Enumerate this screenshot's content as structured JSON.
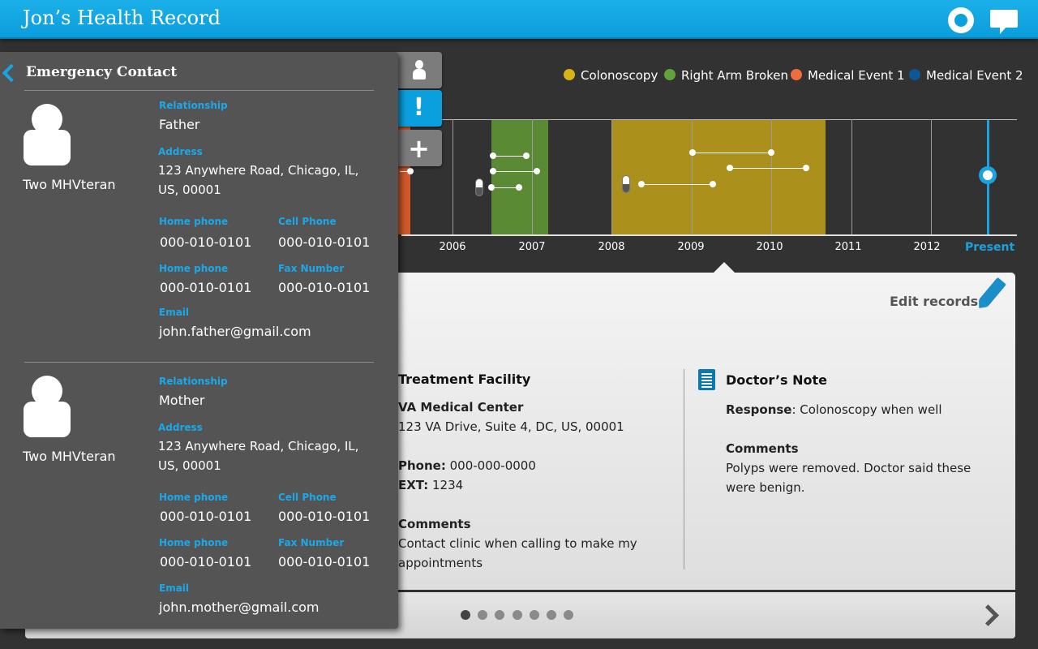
{
  "header": {
    "title": "Jon’s Health Record"
  },
  "legend": [
    {
      "label": "Colonoscopy",
      "color": "#d6b416"
    },
    {
      "label": "Right Arm Broken",
      "color": "#62a23b"
    },
    {
      "label": "Medical Event 1",
      "color": "#ef6c3c"
    },
    {
      "label": "Medical Event 2",
      "color": "#0d5797"
    }
  ],
  "timeline": {
    "years": [
      "2006",
      "2007",
      "2008",
      "2009",
      "2010",
      "2011",
      "2012"
    ],
    "present_label": "Present"
  },
  "detail": {
    "edit_label": "Edit records",
    "facility": {
      "title": "Treatment Facility",
      "name": "VA Medical Center",
      "address": "123 VA Drive, Suite 4, DC, US, 00001",
      "phone_label": "Phone:",
      "phone": "000-000-0000",
      "ext_label": "EXT:",
      "ext": "1234",
      "comments_label": "Comments",
      "comments_line1": "Contact clinic when calling to make my",
      "comments_line2": "appointments"
    },
    "note": {
      "title": "Doctor’s Note",
      "response_label": "Response",
      "response": ": Colonoscopy when well",
      "comments_label": "Comments",
      "comments_line1": "Polyps were removed. Doctor said these",
      "comments_line2": "were benign."
    }
  },
  "pager": {
    "count": 7,
    "active_index": 0
  },
  "contact_panel": {
    "title": "Emergency Contact",
    "contacts": [
      {
        "name": "Two MHVteran",
        "relationship_label": "Relationship",
        "relationship": "Father",
        "address_label": "Address",
        "address_line1": "123 Anywhere Road, Chicago, IL,",
        "address_line2": "US, 00001",
        "home_phone_label": "Home phone",
        "home_phone": "000-010-0101",
        "cell_phone_label": "Cell Phone",
        "cell_phone": "000-010-0101",
        "home_phone2_label": "Home phone",
        "home_phone2": "000-010-0101",
        "fax_label": "Fax Number",
        "fax": "000-010-0101",
        "email_label": "Email",
        "email": "john.father@gmail.com"
      },
      {
        "name": "Two MHVteran",
        "relationship_label": "Relationship",
        "relationship": "Mother",
        "address_label": "Address",
        "address_line1": "123 Anywhere Road, Chicago, IL,",
        "address_line2": "US, 00001",
        "home_phone_label": "Home phone",
        "home_phone": "000-010-0101",
        "cell_phone_label": "Cell Phone",
        "cell_phone": "000-010-0101",
        "home_phone2_label": "Home phone",
        "home_phone2": "000-010-0101",
        "fax_label": "Fax Number",
        "fax": "000-010-0101",
        "email_label": "Email",
        "email": "john.mother@gmail.com"
      }
    ]
  }
}
